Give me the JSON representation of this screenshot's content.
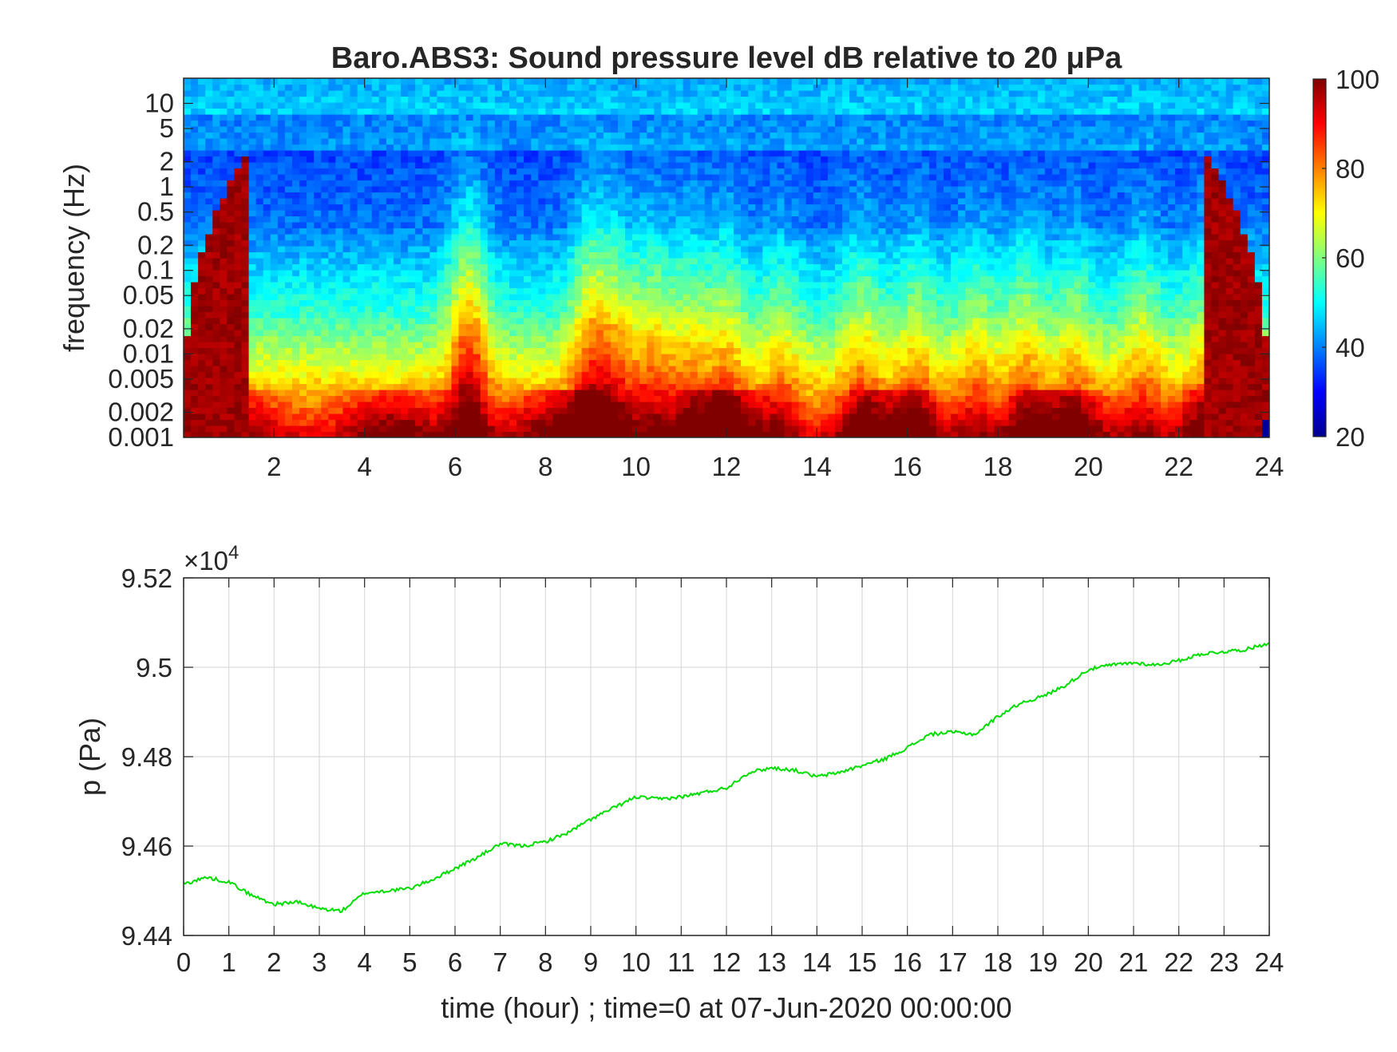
{
  "chart_data": [
    {
      "type": "heatmap",
      "title": "Baro.ABS3: Sound pressure level dB relative to 20 μPa",
      "xlabel": "",
      "ylabel": "frequency (Hz)",
      "xlim": [
        0,
        24
      ],
      "ylim": [
        0.001,
        20
      ],
      "yscale": "log",
      "x_ticks": [
        "2",
        "4",
        "6",
        "8",
        "10",
        "12",
        "14",
        "16",
        "18",
        "20",
        "22",
        "24"
      ],
      "y_ticks": [
        "0.001",
        "0.002",
        "0.005",
        "0.01",
        "0.02",
        "0.05",
        "0.1",
        "0.2",
        "0.5",
        "1",
        "2",
        "5",
        "10"
      ],
      "colormap": "jet",
      "colorbar": {
        "range": [
          20,
          100
        ],
        "ticks": [
          "20",
          "40",
          "60",
          "80",
          "100"
        ]
      }
    },
    {
      "type": "line",
      "xlabel": "time (hour) ; time=0 at 07-Jun-2020 00:00:00",
      "ylabel": "p (Pa)",
      "xlim": [
        0,
        24
      ],
      "ylim": [
        94400,
        95200
      ],
      "y_multiplier_label": "×10",
      "y_multiplier_exp": "4",
      "grid": true,
      "x_ticks": [
        "0",
        "1",
        "2",
        "3",
        "4",
        "5",
        "6",
        "7",
        "8",
        "9",
        "10",
        "11",
        "12",
        "13",
        "14",
        "15",
        "16",
        "17",
        "18",
        "19",
        "20",
        "21",
        "22",
        "23",
        "24"
      ],
      "y_ticks": [
        "9.44",
        "9.46",
        "9.48",
        "9.5",
        "9.52"
      ],
      "series": [
        {
          "color": "#00dd00",
          "x": [
            0,
            0.5,
            1,
            1.5,
            2,
            2.5,
            3,
            3.5,
            4,
            4.5,
            5,
            5.5,
            6,
            6.5,
            7,
            7.5,
            8,
            8.5,
            9,
            9.5,
            10,
            10.5,
            11,
            11.5,
            12,
            12.5,
            13,
            13.5,
            14,
            14.5,
            15,
            15.5,
            16,
            16.5,
            17,
            17.5,
            18,
            18.5,
            19,
            19.5,
            20,
            20.5,
            21,
            21.5,
            22,
            22.5,
            23,
            23.5,
            24
          ],
          "y": [
            94515,
            94530,
            94520,
            94490,
            94470,
            94475,
            94460,
            94455,
            94495,
            94500,
            94505,
            94525,
            94550,
            94575,
            94605,
            94600,
            94610,
            94630,
            94660,
            94685,
            94710,
            94705,
            94710,
            94720,
            94730,
            94765,
            94775,
            94770,
            94755,
            94765,
            94780,
            94795,
            94820,
            94850,
            94855,
            94850,
            94890,
            94920,
            94935,
            94960,
            94995,
            95005,
            95010,
            95005,
            95015,
            95030,
            95035,
            95040,
            95055
          ]
        }
      ]
    }
  ]
}
